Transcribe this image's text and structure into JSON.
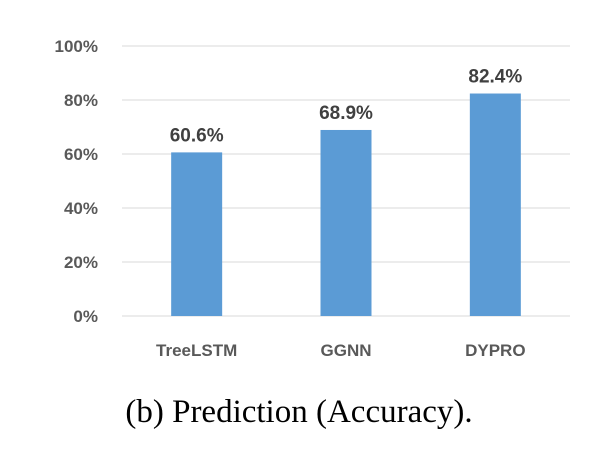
{
  "caption": "(b) Prediction (Accuracy).",
  "chart_data": {
    "type": "bar",
    "categories": [
      "TreeLSTM",
      "GGNN",
      "DYPRO"
    ],
    "values": [
      60.6,
      68.9,
      82.4
    ],
    "data_labels": [
      "60.6%",
      "68.9%",
      "82.4%"
    ],
    "yticks": [
      0,
      20,
      40,
      60,
      80,
      100
    ],
    "ytick_labels": [
      "0%",
      "20%",
      "40%",
      "60%",
      "80%",
      "100%"
    ],
    "ylim": [
      0,
      100
    ],
    "grid": true,
    "legend": "none",
    "colors": {
      "bar": "#5b9bd5",
      "grid": "#d9d9d9"
    }
  }
}
